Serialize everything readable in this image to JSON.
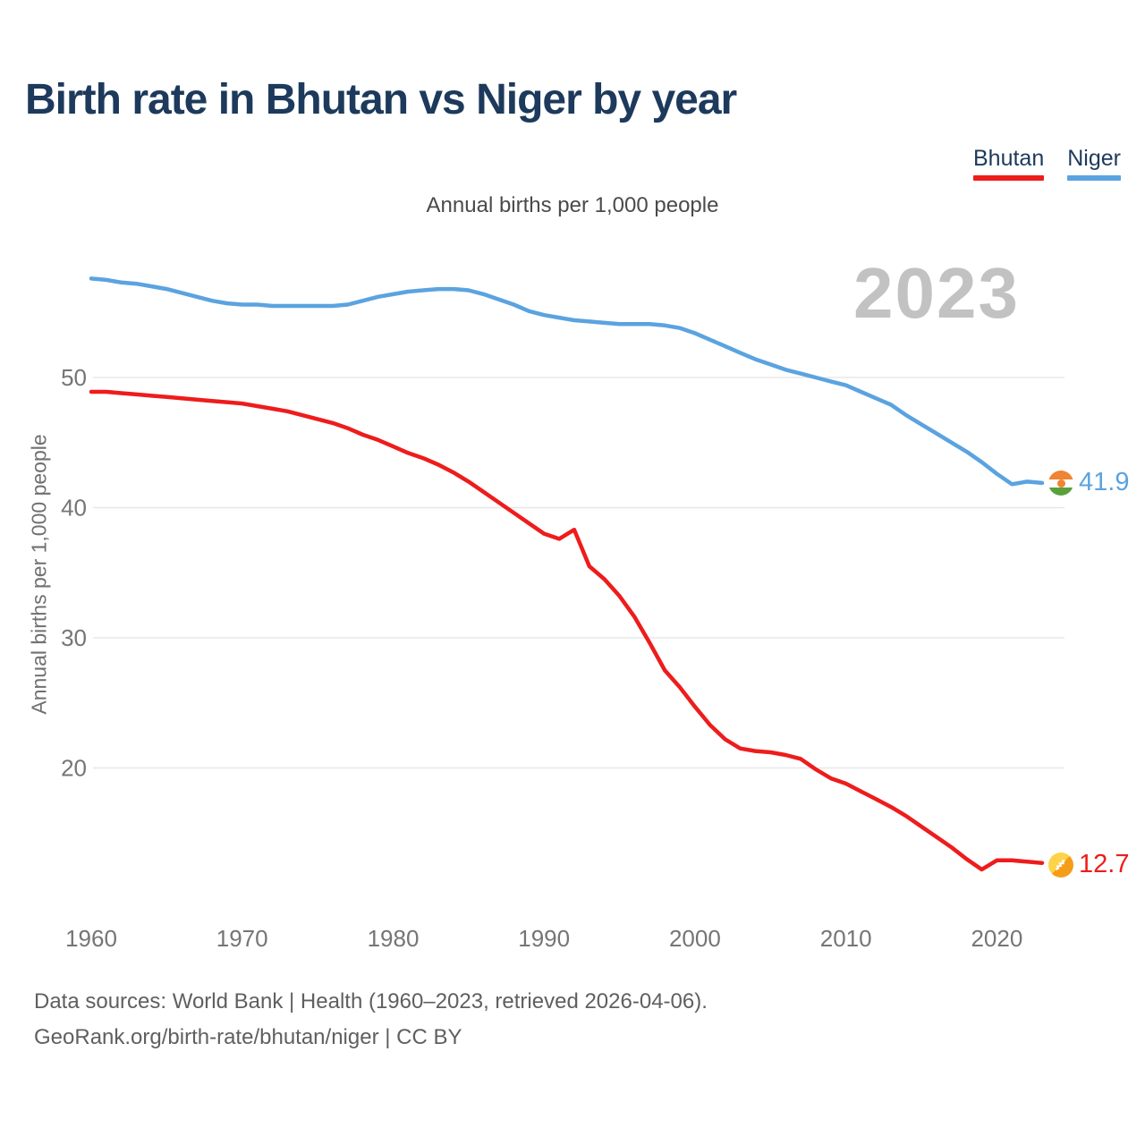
{
  "title": "Birth rate in Bhutan vs Niger by year",
  "subtitle": "Annual births per 1,000 people",
  "y_axis_title": "Annual births per 1,000 people",
  "watermark_year": "2023",
  "legend": {
    "bhutan": {
      "label": "Bhutan",
      "color": "#ee1c1c"
    },
    "niger": {
      "label": "Niger",
      "color": "#5ba3e0"
    }
  },
  "end_labels": {
    "niger_value": "41.9",
    "bhutan_value": "12.7"
  },
  "footer": {
    "line1": "Data sources: World Bank | Health (1960–2023, retrieved 2026-04-06).",
    "line2": "GeoRank.org/birth-rate/bhutan/niger | CC BY"
  },
  "colors": {
    "bhutan_line": "#ee1c1c",
    "niger_line": "#5ba3e0",
    "grid": "#e8e8e8",
    "axis_text": "#757575",
    "title_text": "#1d3a5c",
    "watermark": "#c2c2c2",
    "niger_flag_orange": "#ef8434",
    "niger_flag_green": "#5aa03c",
    "bhutan_flag_yellow": "#fdd34a",
    "bhutan_flag_orange": "#f59d18"
  },
  "chart_data": {
    "type": "line",
    "title": "Birth rate in Bhutan vs Niger by year",
    "ylabel": "Annual births per 1,000 people",
    "xlabel": "",
    "x_range": [
      1960,
      2023
    ],
    "ylim": [
      10,
      60
    ],
    "x_ticks": [
      1960,
      1970,
      1980,
      1990,
      2000,
      2010,
      2020
    ],
    "y_ticks": [
      20,
      30,
      40,
      50
    ],
    "grid": "horizontal",
    "legend_position": "top-right",
    "x": [
      1960,
      1961,
      1962,
      1963,
      1964,
      1965,
      1966,
      1967,
      1968,
      1969,
      1970,
      1971,
      1972,
      1973,
      1974,
      1975,
      1976,
      1977,
      1978,
      1979,
      1980,
      1981,
      1982,
      1983,
      1984,
      1985,
      1986,
      1987,
      1988,
      1989,
      1990,
      1991,
      1992,
      1993,
      1994,
      1995,
      1996,
      1997,
      1998,
      1999,
      2000,
      2001,
      2002,
      2003,
      2004,
      2005,
      2006,
      2007,
      2008,
      2009,
      2010,
      2011,
      2012,
      2013,
      2014,
      2015,
      2016,
      2017,
      2018,
      2019,
      2020,
      2021,
      2022,
      2023
    ],
    "series": [
      {
        "name": "Bhutan",
        "color": "#ee1c1c",
        "end_value": 12.7,
        "values": [
          48.9,
          48.9,
          48.8,
          48.7,
          48.6,
          48.5,
          48.4,
          48.3,
          48.2,
          48.1,
          48.0,
          47.8,
          47.6,
          47.4,
          47.1,
          46.8,
          46.5,
          46.1,
          45.6,
          45.2,
          44.7,
          44.2,
          43.8,
          43.3,
          42.7,
          42.0,
          41.2,
          40.4,
          39.6,
          38.8,
          38.0,
          37.6,
          38.3,
          35.5,
          34.5,
          33.2,
          31.6,
          29.6,
          27.5,
          26.2,
          24.7,
          23.3,
          22.2,
          21.5,
          21.3,
          21.2,
          21.0,
          20.7,
          19.9,
          19.2,
          18.8,
          18.2,
          17.6,
          17.0,
          16.3,
          15.5,
          14.7,
          13.9,
          13.0,
          12.2,
          12.9,
          12.9,
          12.8,
          12.7
        ]
      },
      {
        "name": "Niger",
        "color": "#5ba3e0",
        "end_value": 41.9,
        "values": [
          57.6,
          57.5,
          57.3,
          57.2,
          57.0,
          56.8,
          56.5,
          56.2,
          55.9,
          55.7,
          55.6,
          55.6,
          55.5,
          55.5,
          55.5,
          55.5,
          55.5,
          55.6,
          55.9,
          56.2,
          56.4,
          56.6,
          56.7,
          56.8,
          56.8,
          56.7,
          56.4,
          56.0,
          55.6,
          55.1,
          54.8,
          54.6,
          54.4,
          54.3,
          54.2,
          54.1,
          54.1,
          54.1,
          54.0,
          53.8,
          53.4,
          52.9,
          52.4,
          51.9,
          51.4,
          51.0,
          50.6,
          50.3,
          50.0,
          49.7,
          49.4,
          48.9,
          48.4,
          47.9,
          47.1,
          46.4,
          45.7,
          45.0,
          44.3,
          43.5,
          42.6,
          41.8,
          42.0,
          41.9
        ]
      }
    ]
  }
}
